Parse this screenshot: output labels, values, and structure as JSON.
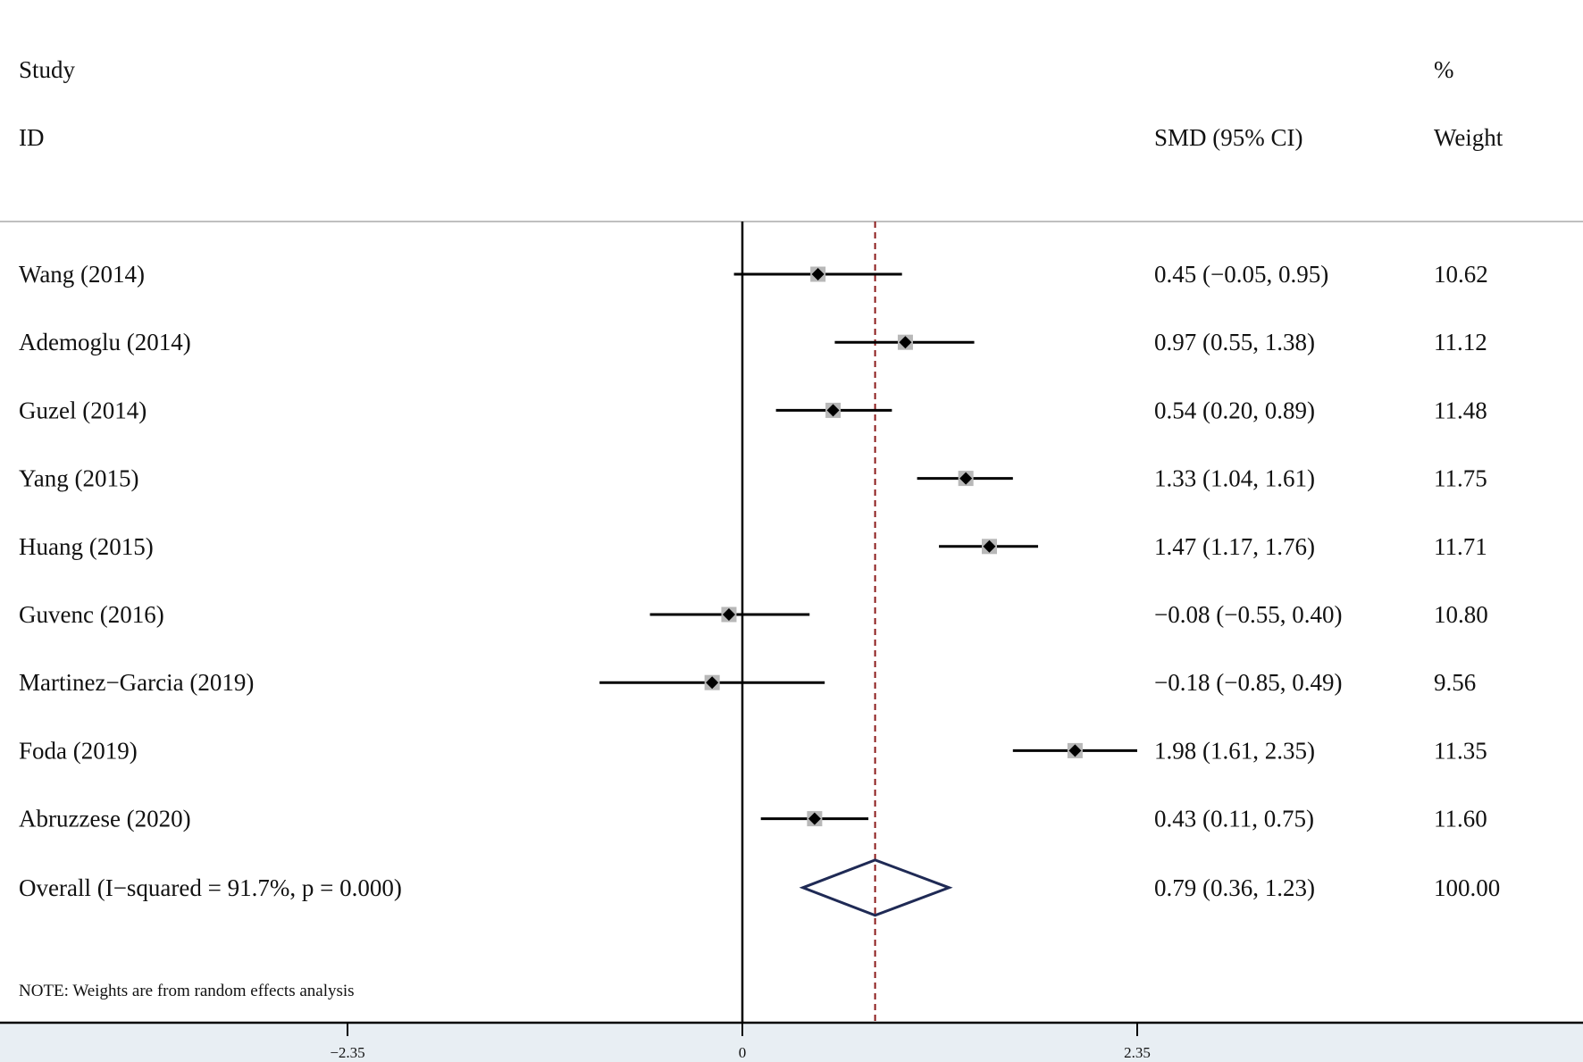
{
  "header": {
    "study_line1": "Study",
    "study_line2": "ID",
    "effect_label": "SMD (95% CI)",
    "weight_line1": "%",
    "weight_line2": "Weight"
  },
  "note": "NOTE: Weights are from random effects analysis",
  "chart_data": {
    "type": "forest",
    "xlabel": "",
    "xlim": [
      -2.35,
      2.35
    ],
    "ticks": [
      {
        "value": -2.35,
        "label": "−2.35"
      },
      {
        "value": 0,
        "label": "0"
      },
      {
        "value": 2.35,
        "label": "2.35"
      }
    ],
    "null_line": 0,
    "studies": [
      {
        "label": "Wang (2014)",
        "smd": 0.45,
        "lo": -0.05,
        "hi": 0.95,
        "ci_text": "0.45 (−0.05, 0.95)",
        "weight": "10.62"
      },
      {
        "label": "Ademoglu (2014)",
        "smd": 0.97,
        "lo": 0.55,
        "hi": 1.38,
        "ci_text": "0.97 (0.55, 1.38)",
        "weight": "11.12"
      },
      {
        "label": "Guzel (2014)",
        "smd": 0.54,
        "lo": 0.2,
        "hi": 0.89,
        "ci_text": "0.54 (0.20, 0.89)",
        "weight": "11.48"
      },
      {
        "label": "Yang (2015)",
        "smd": 1.33,
        "lo": 1.04,
        "hi": 1.61,
        "ci_text": "1.33 (1.04, 1.61)",
        "weight": "11.75"
      },
      {
        "label": "Huang (2015)",
        "smd": 1.47,
        "lo": 1.17,
        "hi": 1.76,
        "ci_text": "1.47 (1.17, 1.76)",
        "weight": "11.71"
      },
      {
        "label": "Guvenc (2016)",
        "smd": -0.08,
        "lo": -0.55,
        "hi": 0.4,
        "ci_text": "−0.08 (−0.55, 0.40)",
        "weight": "10.80"
      },
      {
        "label": "Martinez−Garcia (2019)",
        "smd": -0.18,
        "lo": -0.85,
        "hi": 0.49,
        "ci_text": "−0.18 (−0.85, 0.49)",
        "weight": "9.56"
      },
      {
        "label": "Foda (2019)",
        "smd": 1.98,
        "lo": 1.61,
        "hi": 2.35,
        "ci_text": "1.98 (1.61, 2.35)",
        "weight": "11.35"
      },
      {
        "label": "Abruzzese (2020)",
        "smd": 0.43,
        "lo": 0.11,
        "hi": 0.75,
        "ci_text": "0.43 (0.11, 0.75)",
        "weight": "11.60"
      }
    ],
    "overall": {
      "label": "Overall  (I−squared = 91.7%, p = 0.000)",
      "smd": 0.79,
      "lo": 0.36,
      "hi": 1.23,
      "ci_text": "0.79 (0.36, 1.23)",
      "weight": "100.00"
    },
    "colors": {
      "marker": "#000000",
      "weight_box": "#b8b8b8",
      "ci_line": "#000000",
      "overall_line": "#8b1a1a",
      "diamond": "#1f2a55",
      "rule": "#bfbfbf"
    }
  }
}
